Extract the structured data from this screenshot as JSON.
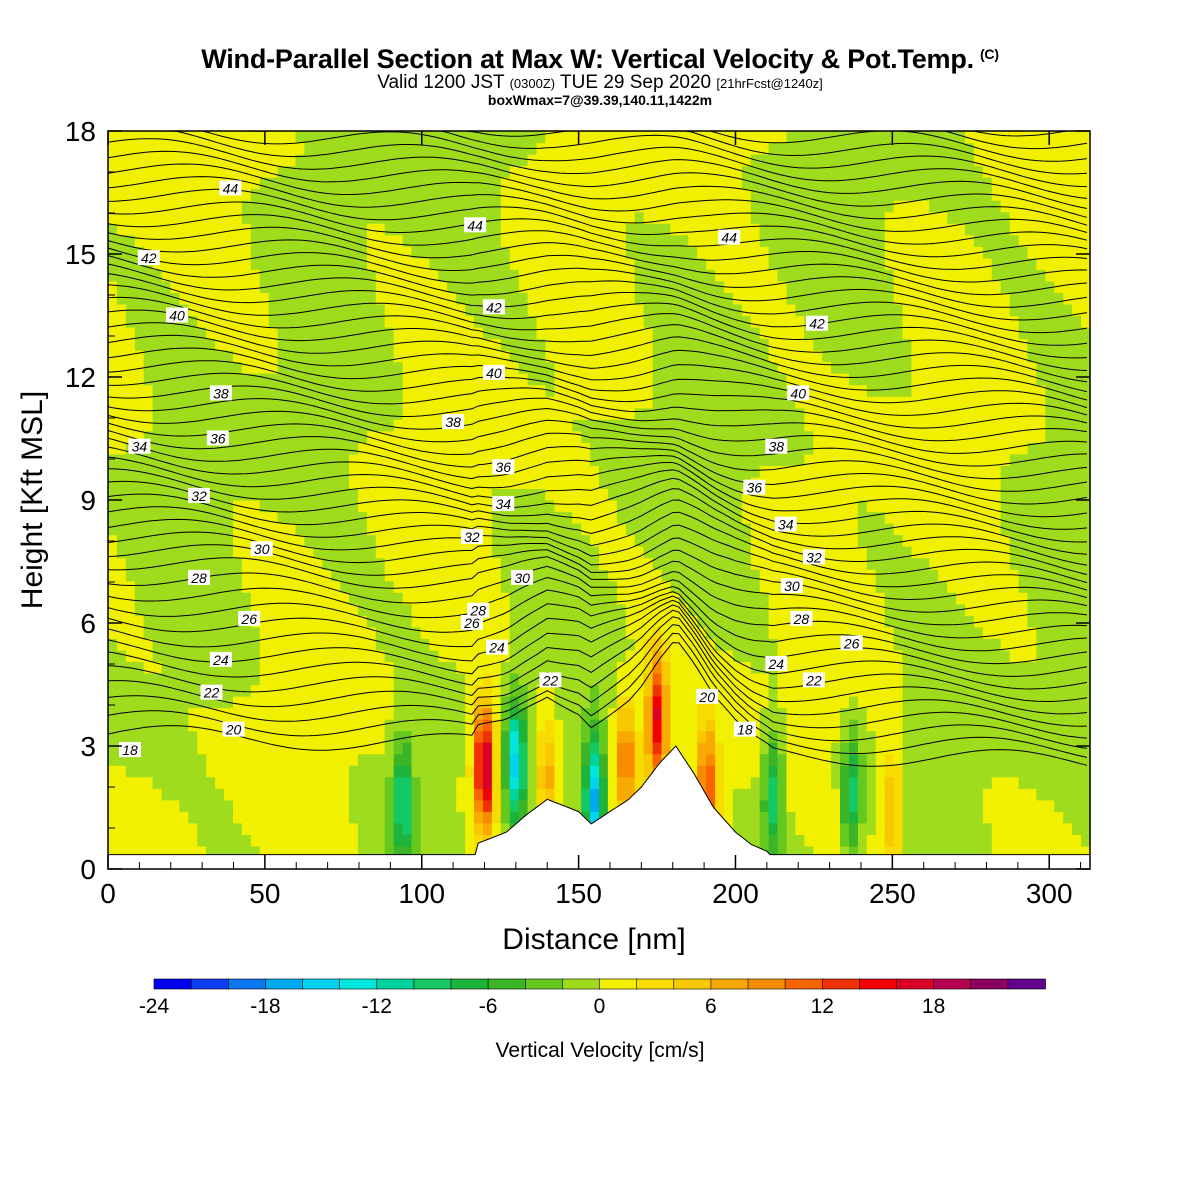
{
  "header": {
    "title": "Wind-Parallel Section at Max W: Vertical Velocity & Pot.Temp.",
    "copyright": "(C)",
    "valid_main": "Valid 1200 JST",
    "valid_utc": "(0300Z)",
    "valid_date": "TUE 29 Sep 2020",
    "forecast": "[21hrFcst@1240z]",
    "box_info": "boxWmax=7@39.39,140.11,1422m"
  },
  "chart_data": {
    "type": "heatmap",
    "title": "Wind-Parallel Section at Max W: Vertical Velocity & Pot.Temp.",
    "xlabel": "Distance [nm]",
    "ylabel": "Height [Kft MSL]",
    "xlim": [
      0,
      313
    ],
    "ylim": [
      0,
      18
    ],
    "x_ticks": [
      0,
      50,
      100,
      150,
      200,
      250,
      300
    ],
    "y_ticks": [
      0,
      3,
      6,
      9,
      12,
      15,
      18
    ],
    "colorbar": {
      "label": "Vertical Velocity [cm/s]",
      "ticks": [
        -24,
        -18,
        -12,
        -6,
        0,
        6,
        12,
        18
      ],
      "bins": [
        -24,
        -22,
        -20,
        -18,
        -16,
        -14,
        -12,
        -10,
        -8,
        -6,
        -4,
        -2,
        0,
        2,
        4,
        6,
        8,
        10,
        12,
        14,
        16,
        18,
        20,
        22
      ],
      "colors": [
        "#0000ee",
        "#0a3cf0",
        "#0a78f0",
        "#00aaf0",
        "#00d2f0",
        "#00e6dc",
        "#00d2a0",
        "#14c864",
        "#1eb43c",
        "#3cb428",
        "#64c81e",
        "#a0dc1e",
        "#f0f000",
        "#f8dc00",
        "#f8c800",
        "#f8aa00",
        "#f88c00",
        "#f86400",
        "#f03200",
        "#f00000",
        "#dc0028",
        "#b40050",
        "#8c0064",
        "#64008c"
      ]
    },
    "vertical_velocity_features": [
      {
        "x": 120,
        "z": 2.5,
        "w": 20,
        "kind": "updraft"
      },
      {
        "x": 175,
        "z": 3.7,
        "w": 16,
        "kind": "updraft"
      },
      {
        "x": 165,
        "z": 2.7,
        "w": 10,
        "kind": "updraft"
      },
      {
        "x": 140,
        "z": 2.2,
        "w": 8,
        "kind": "updraft"
      },
      {
        "x": 191,
        "z": 2.0,
        "w": 12,
        "kind": "updraft"
      },
      {
        "x": 250,
        "z": 1.5,
        "w": 7,
        "kind": "updraft"
      },
      {
        "x": 130,
        "z": 2.6,
        "w": -14,
        "kind": "downdraft"
      },
      {
        "x": 155,
        "z": 1.8,
        "w": -16,
        "kind": "downdraft"
      },
      {
        "x": 94,
        "z": 1.7,
        "w": -10,
        "kind": "downdraft"
      },
      {
        "x": 237,
        "z": 1.8,
        "w": -9,
        "kind": "downdraft"
      },
      {
        "x": 212,
        "z": 1.8,
        "w": -9,
        "kind": "downdraft"
      }
    ],
    "terrain_height_kft": {
      "x": [
        117,
        127,
        133,
        140,
        150,
        154,
        160,
        166,
        170,
        176,
        181,
        187,
        193,
        200,
        205,
        211
      ],
      "z": [
        0.6,
        0.9,
        1.3,
        1.7,
        1.4,
        1.1,
        1.4,
        1.7,
        2.0,
        2.6,
        3.0,
        2.3,
        1.5,
        0.9,
        0.6,
        0.4
      ]
    },
    "theta_contour_labels": [
      {
        "x": 7,
        "z": 2.9,
        "v": "18"
      },
      {
        "x": 40,
        "z": 3.4,
        "v": "20"
      },
      {
        "x": 33,
        "z": 4.3,
        "v": "22"
      },
      {
        "x": 36,
        "z": 5.1,
        "v": "24"
      },
      {
        "x": 45,
        "z": 6.1,
        "v": "26"
      },
      {
        "x": 29,
        "z": 7.1,
        "v": "28"
      },
      {
        "x": 49,
        "z": 7.8,
        "v": "30"
      },
      {
        "x": 29,
        "z": 9.1,
        "v": "32"
      },
      {
        "x": 10,
        "z": 10.3,
        "v": "34"
      },
      {
        "x": 35,
        "z": 10.5,
        "v": "36"
      },
      {
        "x": 36,
        "z": 11.6,
        "v": "38"
      },
      {
        "x": 22,
        "z": 13.5,
        "v": "40"
      },
      {
        "x": 13,
        "z": 14.9,
        "v": "42"
      },
      {
        "x": 39,
        "z": 16.6,
        "v": "44"
      },
      {
        "x": 116,
        "z": 6.0,
        "v": "26"
      },
      {
        "x": 118,
        "z": 6.3,
        "v": "28"
      },
      {
        "x": 124,
        "z": 5.4,
        "v": "24"
      },
      {
        "x": 141,
        "z": 4.6,
        "v": "22"
      },
      {
        "x": 132,
        "z": 7.1,
        "v": "30"
      },
      {
        "x": 116,
        "z": 8.1,
        "v": "32"
      },
      {
        "x": 126,
        "z": 8.9,
        "v": "34"
      },
      {
        "x": 126,
        "z": 9.8,
        "v": "36"
      },
      {
        "x": 110,
        "z": 10.9,
        "v": "38"
      },
      {
        "x": 123,
        "z": 12.1,
        "v": "40"
      },
      {
        "x": 123,
        "z": 13.7,
        "v": "42"
      },
      {
        "x": 117,
        "z": 15.7,
        "v": "44"
      },
      {
        "x": 191,
        "z": 4.2,
        "v": "20"
      },
      {
        "x": 203,
        "z": 3.4,
        "v": "18"
      },
      {
        "x": 213,
        "z": 5.0,
        "v": "24"
      },
      {
        "x": 225,
        "z": 4.6,
        "v": "22"
      },
      {
        "x": 221,
        "z": 6.1,
        "v": "28"
      },
      {
        "x": 218,
        "z": 6.9,
        "v": "30"
      },
      {
        "x": 225,
        "z": 7.6,
        "v": "32"
      },
      {
        "x": 216,
        "z": 8.4,
        "v": "34"
      },
      {
        "x": 206,
        "z": 9.3,
        "v": "36"
      },
      {
        "x": 213,
        "z": 10.3,
        "v": "38"
      },
      {
        "x": 220,
        "z": 11.6,
        "v": "40"
      },
      {
        "x": 226,
        "z": 13.3,
        "v": "42"
      },
      {
        "x": 198,
        "z": 15.4,
        "v": "44"
      },
      {
        "x": 237,
        "z": 5.5,
        "v": "26"
      }
    ]
  }
}
